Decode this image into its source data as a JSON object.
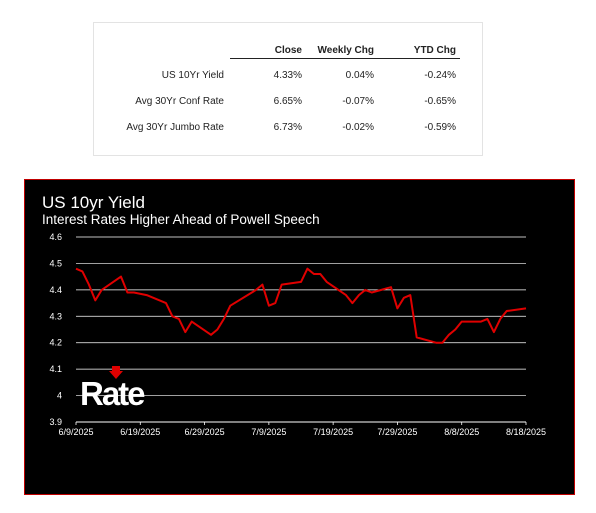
{
  "rates_table": {
    "headers": [
      "Close",
      "Weekly Chg",
      "YTD Chg"
    ],
    "rows": [
      {
        "label": "US 10Yr Yield",
        "close": "4.33%",
        "weekly": "0.04%",
        "ytd": "-0.24%"
      },
      {
        "label": "Avg 30Yr Conf Rate",
        "close": "6.65%",
        "weekly": "-0.07%",
        "ytd": "-0.65%"
      },
      {
        "label": "Avg 30Yr Jumbo Rate",
        "close": "6.73%",
        "weekly": "-0.02%",
        "ytd": "-0.59%"
      }
    ]
  },
  "logo": {
    "text": "Rate"
  },
  "chart_data": {
    "type": "line",
    "title": "US 10yr Yield",
    "subtitle": "Interest Rates Higher Ahead of Powell Speech",
    "xlabel": "",
    "ylabel": "",
    "ylim": [
      3.9,
      4.6
    ],
    "yticks": [
      "3.9",
      "4",
      "4.1",
      "4.2",
      "4.3",
      "4.4",
      "4.5",
      "4.6"
    ],
    "xlim": [
      "2025-06-09",
      "2025-08-18"
    ],
    "xticks": [
      "6/9/2025",
      "6/19/2025",
      "6/29/2025",
      "7/9/2025",
      "7/19/2025",
      "7/29/2025",
      "8/8/2025",
      "8/18/2025"
    ],
    "grid": "horizontal",
    "line_color": "#e00000",
    "series": [
      {
        "x": [
          "2025-06-09",
          "2025-06-10",
          "2025-06-11",
          "2025-06-12",
          "2025-06-13",
          "2025-06-16",
          "2025-06-17",
          "2025-06-18",
          "2025-06-20",
          "2025-06-23",
          "2025-06-24",
          "2025-06-25",
          "2025-06-26",
          "2025-06-27",
          "2025-06-30",
          "2025-07-01",
          "2025-07-02",
          "2025-07-03",
          "2025-07-07",
          "2025-07-08",
          "2025-07-09",
          "2025-07-10",
          "2025-07-11",
          "2025-07-14",
          "2025-07-15",
          "2025-07-16",
          "2025-07-17",
          "2025-07-18",
          "2025-07-21",
          "2025-07-22",
          "2025-07-23",
          "2025-07-24",
          "2025-07-25",
          "2025-07-28",
          "2025-07-29",
          "2025-07-30",
          "2025-07-31",
          "2025-08-01",
          "2025-08-04",
          "2025-08-05",
          "2025-08-06",
          "2025-08-07",
          "2025-08-08",
          "2025-08-11",
          "2025-08-12",
          "2025-08-13",
          "2025-08-14",
          "2025-08-15",
          "2025-08-18"
        ],
        "y": [
          4.48,
          4.47,
          4.42,
          4.36,
          4.4,
          4.45,
          4.39,
          4.39,
          4.38,
          4.35,
          4.3,
          4.29,
          4.24,
          4.28,
          4.23,
          4.25,
          4.29,
          4.34,
          4.4,
          4.42,
          4.34,
          4.35,
          4.42,
          4.43,
          4.48,
          4.46,
          4.46,
          4.43,
          4.38,
          4.35,
          4.38,
          4.4,
          4.39,
          4.41,
          4.33,
          4.37,
          4.38,
          4.22,
          4.2,
          4.2,
          4.23,
          4.25,
          4.28,
          4.28,
          4.29,
          4.24,
          4.29,
          4.32,
          4.33
        ]
      }
    ]
  }
}
